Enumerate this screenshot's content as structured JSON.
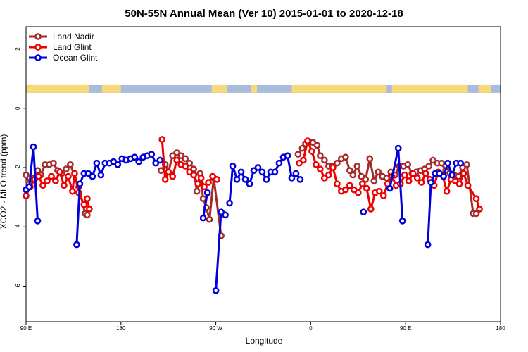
{
  "chart_data": {
    "type": "line",
    "title": "50N-55N Annual Mean (Ver 10)   2015-01-01 to 2020-12-18",
    "xlabel": "Longitude",
    "ylabel": "XCO2 - MLO trend (ppm)",
    "x_ticks": [
      {
        "value": 90,
        "label": "90 E"
      },
      {
        "value": 180,
        "label": "180"
      },
      {
        "value": 270,
        "label": "90 W"
      },
      {
        "value": 360,
        "label": "0"
      },
      {
        "value": 450,
        "label": "90 E"
      },
      {
        "value": 540,
        "label": "180"
      }
    ],
    "y_ticks": [
      {
        "value": 2,
        "label": "2"
      },
      {
        "value": 0,
        "label": "0"
      },
      {
        "value": -2,
        "label": "-2"
      },
      {
        "value": -4,
        "label": "-4"
      },
      {
        "value": -6,
        "label": "-6"
      }
    ],
    "xlim": [
      90,
      540
    ],
    "ylim": [
      -7.2,
      2.75
    ],
    "legend": {
      "position": "top-left"
    },
    "land_ocean_strip": {
      "y_range": [
        0.52,
        0.78
      ],
      "ocean_color": "#a7bddb",
      "land_color": "#f7d87a",
      "land_segments": [
        [
          90,
          150
        ],
        [
          162,
          180
        ],
        [
          266,
          281
        ],
        [
          303,
          309
        ],
        [
          342,
          432
        ],
        [
          437,
          509
        ],
        [
          519,
          531
        ]
      ]
    },
    "series": [
      {
        "name": "Land Nadir",
        "color": "#a52a2a",
        "segments": [
          [
            [
              90,
              -2.25
            ],
            [
              93,
              -2.55
            ],
            [
              97,
              -2.35
            ],
            [
              101,
              -2.1
            ],
            [
              104,
              -2.25
            ],
            [
              108,
              -1.9
            ],
            [
              112,
              -1.9
            ],
            [
              116,
              -1.85
            ],
            [
              120,
              -2.1
            ],
            [
              124,
              -2.2
            ],
            [
              128,
              -2.05
            ],
            [
              132,
              -1.9
            ],
            [
              140,
              -2.65
            ],
            [
              146,
              -3.55
            ],
            [
              148,
              -3.6
            ]
          ],
          [
            [
              218,
              -2.1
            ],
            [
              222,
              -1.9
            ],
            [
              225,
              -2.15
            ],
            [
              229,
              -1.6
            ],
            [
              233,
              -1.5
            ],
            [
              237,
              -1.6
            ],
            [
              241,
              -1.7
            ],
            [
              245,
              -1.85
            ],
            [
              249,
              -2.05
            ],
            [
              252,
              -2.8
            ],
            [
              255,
              -2.2
            ],
            [
              258,
              -3.05
            ],
            [
              261,
              -3.35
            ],
            [
              264,
              -3.75
            ],
            [
              268,
              -2.35
            ],
            [
              275,
              -4.3
            ]
          ],
          [
            [
              348,
              -1.55
            ],
            [
              352,
              -1.35
            ],
            [
              355,
              -1.2
            ],
            [
              359,
              -1.15
            ],
            [
              362,
              -1.15
            ],
            [
              366,
              -1.25
            ],
            [
              369,
              -1.6
            ],
            [
              373,
              -1.75
            ],
            [
              377,
              -1.95
            ],
            [
              381,
              -1.95
            ],
            [
              385,
              -1.85
            ],
            [
              389,
              -1.7
            ],
            [
              393,
              -1.65
            ],
            [
              397,
              -2.1
            ],
            [
              400,
              -2.25
            ],
            [
              404,
              -1.95
            ],
            [
              408,
              -2.3
            ],
            [
              412,
              -2.4
            ],
            [
              416,
              -1.7
            ],
            [
              420,
              -2.45
            ],
            [
              424,
              -2.15
            ],
            [
              428,
              -2.3
            ],
            [
              432,
              -2.35
            ],
            [
              436,
              -2.15
            ],
            [
              440,
              -2.25
            ],
            [
              444,
              -1.95
            ],
            [
              448,
              -1.95
            ],
            [
              452,
              -1.9
            ],
            [
              456,
              -2.2
            ],
            [
              460,
              -2.15
            ],
            [
              464,
              -2.1
            ],
            [
              468,
              -2.05
            ],
            [
              472,
              -1.95
            ],
            [
              476,
              -1.75
            ],
            [
              480,
              -1.85
            ],
            [
              484,
              -1.85
            ],
            [
              488,
              -2.1
            ],
            [
              492,
              -2.2
            ],
            [
              496,
              -2.25
            ],
            [
              500,
              -2.3
            ],
            [
              504,
              -2.0
            ],
            [
              508,
              -1.9
            ],
            [
              514,
              -3.55
            ],
            [
              517,
              -3.55
            ]
          ]
        ]
      },
      {
        "name": "Land Glint",
        "color": "#ee0000",
        "segments": [
          [
            [
              90,
              -2.95
            ],
            [
              94,
              -2.65
            ],
            [
              98,
              -2.4
            ],
            [
              102,
              -2.3
            ],
            [
              106,
              -2.6
            ],
            [
              110,
              -2.45
            ],
            [
              114,
              -2.3
            ],
            [
              118,
              -2.45
            ],
            [
              122,
              -2.15
            ],
            [
              126,
              -2.6
            ],
            [
              130,
              -2.3
            ],
            [
              134,
              -2.8
            ],
            [
              136,
              -2.2
            ],
            [
              140,
              -2.85
            ],
            [
              145,
              -3.25
            ],
            [
              148,
              -3.05
            ],
            [
              150,
              -3.4
            ]
          ],
          [
            [
              219,
              -1.05
            ],
            [
              222,
              -2.4
            ],
            [
              225,
              -2.15
            ],
            [
              229,
              -2.3
            ],
            [
              233,
              -1.75
            ],
            [
              237,
              -1.9
            ],
            [
              241,
              -1.95
            ],
            [
              245,
              -2.15
            ],
            [
              249,
              -2.25
            ],
            [
              253,
              -2.55
            ],
            [
              256,
              -2.35
            ],
            [
              259,
              -2.65
            ],
            [
              263,
              -2.5
            ],
            [
              267,
              -2.3
            ],
            [
              271,
              -2.4
            ]
          ],
          [
            [
              349,
              -1.85
            ],
            [
              353,
              -1.75
            ],
            [
              357,
              -1.1
            ],
            [
              361,
              -1.45
            ],
            [
              365,
              -1.9
            ],
            [
              369,
              -2.05
            ],
            [
              373,
              -2.35
            ],
            [
              377,
              -2.25
            ],
            [
              381,
              -2.0
            ],
            [
              385,
              -2.55
            ],
            [
              389,
              -2.8
            ],
            [
              393,
              -2.75
            ],
            [
              397,
              -2.6
            ],
            [
              401,
              -2.75
            ],
            [
              405,
              -2.85
            ],
            [
              409,
              -2.55
            ],
            [
              413,
              -2.7
            ],
            [
              417,
              -3.4
            ],
            [
              421,
              -2.85
            ],
            [
              425,
              -2.8
            ],
            [
              429,
              -2.95
            ],
            [
              433,
              -2.55
            ],
            [
              437,
              -2.3
            ],
            [
              441,
              -2.6
            ],
            [
              445,
              -2.55
            ],
            [
              449,
              -2.25
            ],
            [
              453,
              -2.45
            ],
            [
              457,
              -2.2
            ],
            [
              461,
              -2.35
            ],
            [
              465,
              -2.5
            ],
            [
              469,
              -2.2
            ],
            [
              473,
              -2.4
            ],
            [
              477,
              -2.6
            ],
            [
              481,
              -2.15
            ],
            [
              485,
              -2.25
            ],
            [
              489,
              -2.8
            ],
            [
              493,
              -2.4
            ],
            [
              497,
              -2.45
            ],
            [
              501,
              -2.55
            ],
            [
              505,
              -2.2
            ],
            [
              509,
              -2.6
            ],
            [
              517,
              -3.05
            ],
            [
              520,
              -3.4
            ]
          ]
        ]
      },
      {
        "name": "Ocean Glint",
        "color": "#0000dd",
        "segments": [
          [
            [
              90,
              -2.75
            ],
            [
              93,
              -2.65
            ],
            [
              97,
              -1.3
            ],
            [
              101,
              -3.8
            ]
          ],
          [
            [
              138,
              -4.6
            ],
            [
              141,
              -2.55
            ],
            [
              145,
              -2.2
            ],
            [
              149,
              -2.2
            ],
            [
              153,
              -2.3
            ],
            [
              157,
              -1.85
            ],
            [
              161,
              -2.25
            ],
            [
              165,
              -1.85
            ],
            [
              169,
              -1.85
            ],
            [
              173,
              -1.8
            ],
            [
              177,
              -1.9
            ],
            [
              181,
              -1.7
            ],
            [
              185,
              -1.75
            ],
            [
              189,
              -1.7
            ],
            [
              193,
              -1.65
            ],
            [
              197,
              -1.8
            ],
            [
              201,
              -1.65
            ],
            [
              205,
              -1.6
            ],
            [
              209,
              -1.55
            ],
            [
              213,
              -1.85
            ],
            [
              217,
              -1.75
            ]
          ],
          [
            [
              258,
              -3.7
            ],
            [
              262,
              -2.85
            ]
          ],
          [
            [
              270,
              -6.15
            ],
            [
              275,
              -3.5
            ],
            [
              279,
              -3.6
            ]
          ],
          [
            [
              283,
              -3.2
            ],
            [
              286,
              -1.95
            ],
            [
              290,
              -2.4
            ],
            [
              294,
              -2.15
            ],
            [
              298,
              -2.4
            ],
            [
              302,
              -2.55
            ],
            [
              306,
              -2.1
            ],
            [
              310,
              -2.0
            ],
            [
              314,
              -2.15
            ],
            [
              318,
              -2.4
            ],
            [
              322,
              -2.15
            ],
            [
              326,
              -2.15
            ],
            [
              330,
              -1.85
            ],
            [
              334,
              -1.65
            ],
            [
              338,
              -1.6
            ],
            [
              342,
              -2.35
            ],
            [
              346,
              -2.2
            ],
            [
              350,
              -2.4
            ]
          ],
          [
            [
              410,
              -3.5
            ]
          ],
          [
            [
              435,
              -2.7
            ],
            [
              443,
              -1.35
            ],
            [
              447,
              -3.8
            ]
          ],
          [
            [
              471,
              -4.6
            ],
            [
              474,
              -2.5
            ],
            [
              478,
              -2.2
            ],
            [
              482,
              -2.2
            ],
            [
              486,
              -2.3
            ],
            [
              490,
              -1.85
            ],
            [
              494,
              -2.25
            ],
            [
              498,
              -1.85
            ],
            [
              502,
              -1.85
            ]
          ]
        ]
      }
    ]
  }
}
